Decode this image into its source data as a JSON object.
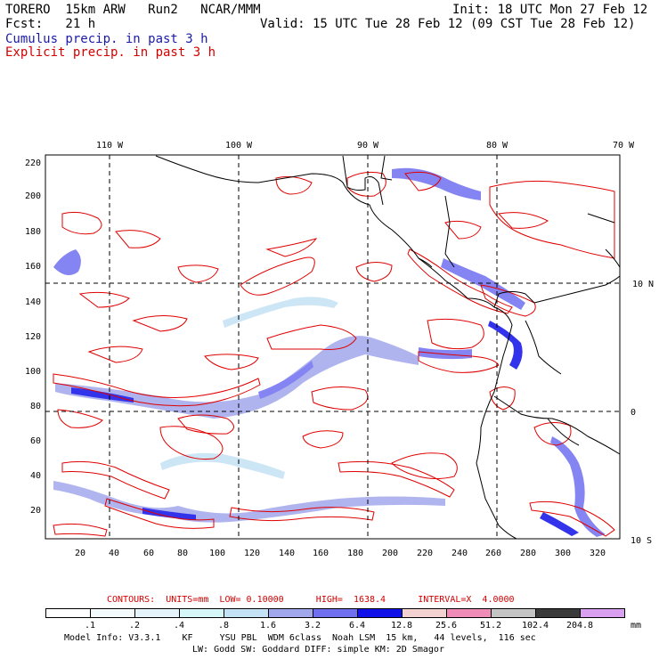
{
  "header": {
    "left_line1": "TORERO  15km ARW   Run2   NCAR/MMM",
    "left_line2": "Fcst:   21 h",
    "right_line1": "Init: 18 UTC Mon 27 Feb 12",
    "right_line2": "Valid: 15 UTC Tue 28 Feb 12 (09 CST Tue 28 Feb 12)",
    "legend_cumulus": "Cumulus precip. in past 3 h",
    "legend_explicit": "Explicit precip. in past 3 h"
  },
  "map": {
    "top_lon_labels": [
      "110 W",
      "100 W",
      "90 W",
      "80 W",
      "70 W"
    ],
    "right_lat_labels": [
      "10 N",
      "0",
      "10 S"
    ],
    "y_ticks": [
      "220",
      "200",
      "180",
      "160",
      "140",
      "120",
      "100",
      "80",
      "60",
      "40",
      "20"
    ],
    "x_ticks": [
      "20",
      "40",
      "60",
      "80",
      "100",
      "120",
      "140",
      "160",
      "180",
      "200",
      "220",
      "240",
      "260",
      "280",
      "300",
      "320"
    ]
  },
  "contours_info": {
    "label": "CONTOURS:  UNITS=mm  LOW= 0.10000      HIGH=  1638.4      INTERVAL=X  4.0000"
  },
  "colorbar": {
    "labels": [
      ".1",
      ".2",
      ".4",
      ".8",
      "1.6",
      "3.2",
      "6.4",
      "12.8",
      "25.6",
      "51.2",
      "102.4",
      "204.8"
    ],
    "unit": "mm",
    "colors": [
      "#ffffff",
      "#f4fbfd",
      "#e4f4fa",
      "#d6f7f7",
      "#c4e2f5",
      "#a2a8ec",
      "#6f6ff0",
      "#1010e8",
      "#f5d2d2",
      "#f08cb8",
      "#c4c4c4",
      "#3a3a3a",
      "#d9a0f0"
    ]
  },
  "footer": {
    "line1": "Model Info: V3.3.1    KF     YSU PBL  WDM 6class  Noah LSM  15 km,   44 levels,  116 sec",
    "line2": "LW: Godd SW: Goddard DIFF: simple KM: 2D Smagor"
  }
}
